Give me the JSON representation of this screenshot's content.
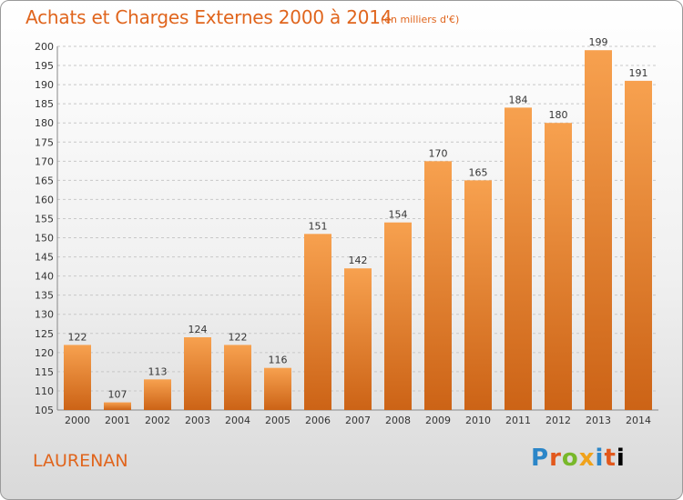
{
  "header": {
    "title": "Achats et Charges Externes 2000 à 2014",
    "unit": "(en milliers d'€)"
  },
  "footer": {
    "commune": "LAURENAN",
    "logo_letters": [
      "P",
      "r",
      "o",
      "x",
      "i",
      "t",
      "i"
    ]
  },
  "colors": {
    "bar_top": "#f7a14f",
    "bar_bottom": "#cc6316",
    "title": "#e0651d",
    "grid": "#c8c8c8"
  },
  "chart_data": {
    "type": "bar",
    "categories": [
      "2000",
      "2001",
      "2002",
      "2003",
      "2004",
      "2005",
      "2006",
      "2007",
      "2008",
      "2009",
      "2010",
      "2011",
      "2012",
      "2013",
      "2014"
    ],
    "values": [
      122,
      107,
      113,
      124,
      122,
      116,
      151,
      142,
      154,
      170,
      165,
      184,
      180,
      199,
      191
    ],
    "title": "Achats et Charges Externes 2000 à 2014",
    "xlabel": "",
    "ylabel": "",
    "ylim": [
      105,
      200
    ],
    "yticks": [
      105,
      110,
      115,
      120,
      125,
      130,
      135,
      140,
      145,
      150,
      155,
      160,
      165,
      170,
      175,
      180,
      185,
      190,
      195,
      200
    ],
    "grid": true,
    "legend": "none",
    "data_labels": true
  }
}
